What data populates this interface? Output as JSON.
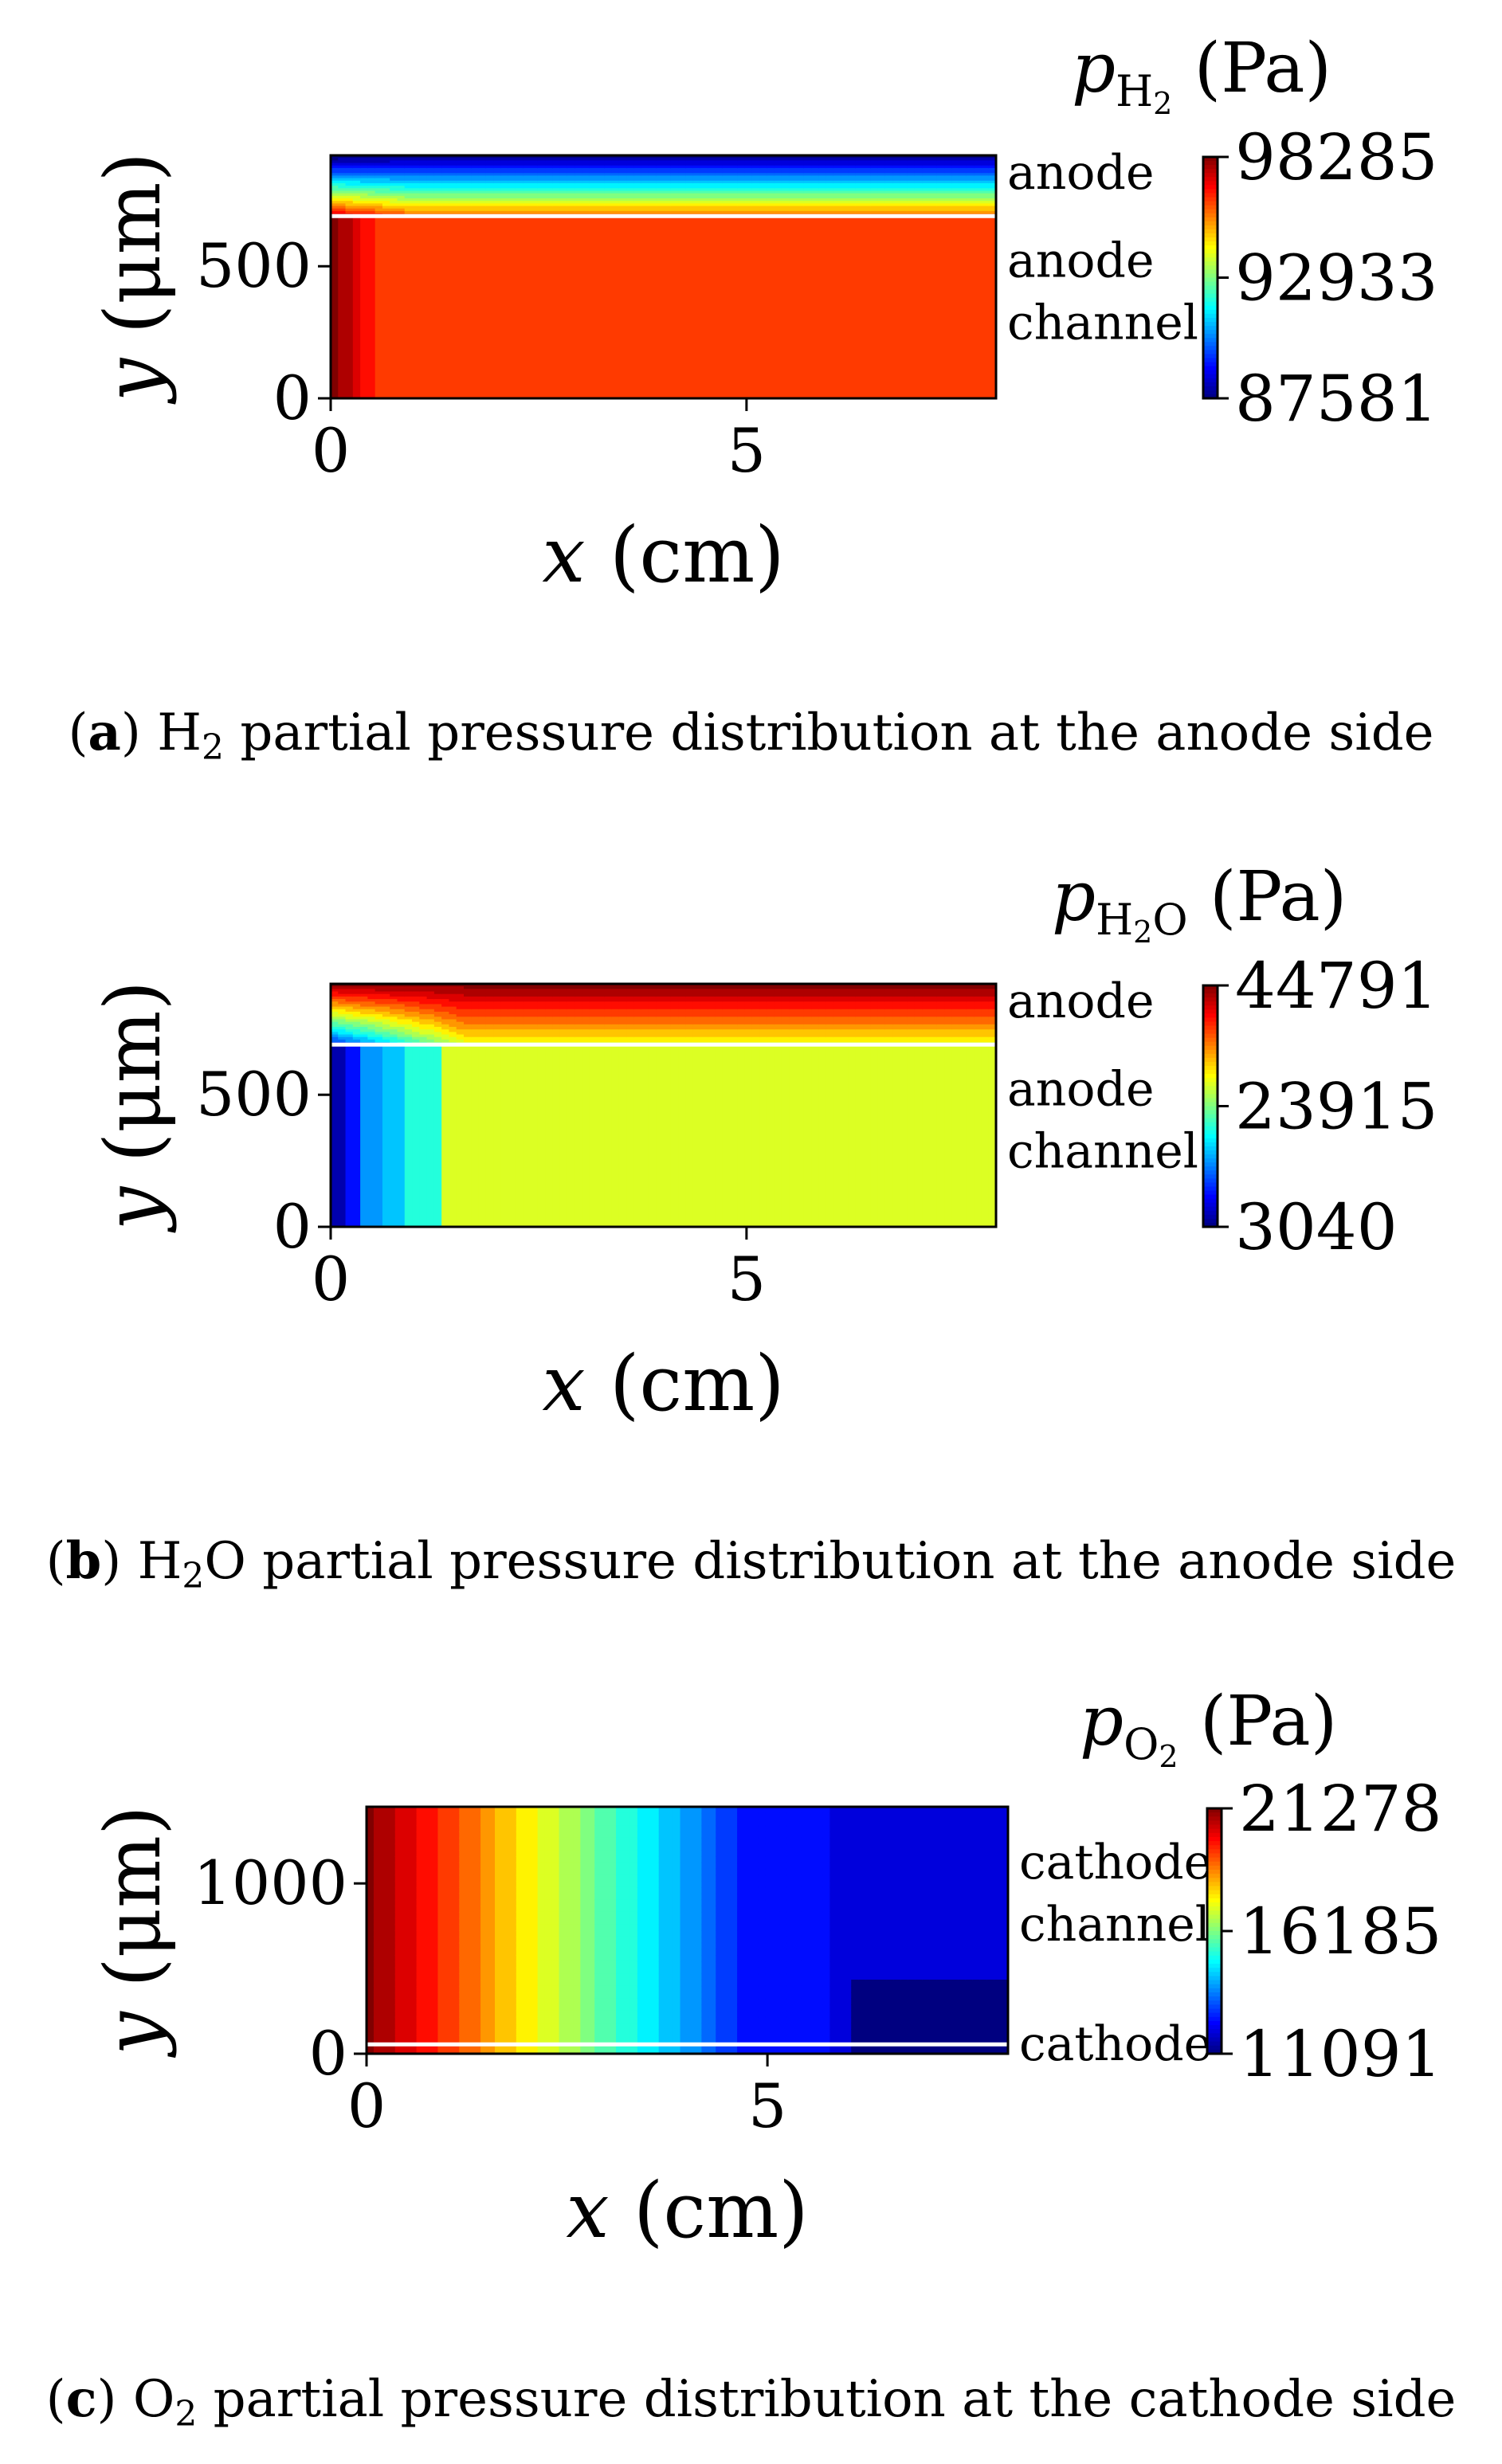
{
  "chart_data": [
    {
      "type": "heatmap",
      "panel": "a",
      "caption": {
        "letter": "a",
        "species": "H",
        "sub": "2",
        "rest": " partial pressure distribution at the anode side"
      },
      "colorbar": {
        "title": {
          "symbol": "p",
          "sub": "H",
          "subsub": "2",
          "unit": "(Pa)"
        },
        "ticks": [
          "98285",
          "92933",
          "87581"
        ],
        "min": 87581,
        "max": 98285,
        "colormap": "jet"
      },
      "xlabel": {
        "var": "x",
        "unit": "(cm)"
      },
      "ylabel": {
        "var": "y",
        "unit": "(μm)"
      },
      "xticks": [
        "0",
        "5"
      ],
      "xtick_values": [
        0,
        5
      ],
      "yticks": [
        "0",
        "500"
      ],
      "ytick_values": [
        0,
        500
      ],
      "xlim": [
        0,
        8
      ],
      "ylim": [
        0,
        920
      ],
      "interface_y": 690,
      "region_labels": {
        "top": [
          "anode"
        ],
        "bottom": [
          "anode",
          "channel"
        ]
      },
      "field": "upper_front_depleted"
    },
    {
      "type": "heatmap",
      "panel": "b",
      "caption": {
        "letter": "b",
        "species": "H",
        "sub": "2",
        "rest": "O partial pressure distribution at the anode side"
      },
      "colorbar": {
        "title": {
          "symbol": "p",
          "sub": "H",
          "subsub": "2",
          "subtail": "O",
          "unit": "(Pa)"
        },
        "ticks": [
          "44791",
          "23915",
          "3040"
        ],
        "min": 3040,
        "max": 44791,
        "colormap": "jet"
      },
      "xlabel": {
        "var": "x",
        "unit": "(cm)"
      },
      "ylabel": {
        "var": "y",
        "unit": "(μm)"
      },
      "xticks": [
        "0",
        "5"
      ],
      "xtick_values": [
        0,
        5
      ],
      "yticks": [
        "0",
        "500"
      ],
      "ytick_values": [
        0,
        500
      ],
      "xlim": [
        0,
        8
      ],
      "ylim": [
        0,
        920
      ],
      "interface_y": 690,
      "region_labels": {
        "top": [
          "anode"
        ],
        "bottom": [
          "anode",
          "channel"
        ]
      },
      "field": "upper_front_enriched"
    },
    {
      "type": "heatmap",
      "panel": "c",
      "caption": {
        "letter": "c",
        "species": "O",
        "sub": "2",
        "rest": " partial pressure distribution at the cathode side"
      },
      "colorbar": {
        "title": {
          "symbol": "p",
          "sub": "O",
          "subsub": "2",
          "unit": "(Pa)"
        },
        "ticks": [
          "21278",
          "16185",
          "11091"
        ],
        "min": 11091,
        "max": 21278,
        "colormap": "jet"
      },
      "xlabel": {
        "var": "x",
        "unit": "(cm)"
      },
      "ylabel": {
        "var": "y",
        "unit": "(μm)"
      },
      "xticks": [
        "0",
        "5"
      ],
      "xtick_values": [
        0,
        5
      ],
      "yticks": [
        "0",
        "1000"
      ],
      "ytick_values": [
        0,
        1000
      ],
      "xlim": [
        0,
        8
      ],
      "ylim": [
        0,
        1450
      ],
      "interface_y": 55,
      "region_labels": {
        "top": [
          "cathode",
          "channel"
        ],
        "bottom": [
          "cathode"
        ]
      },
      "field": "cathode_decay"
    }
  ]
}
